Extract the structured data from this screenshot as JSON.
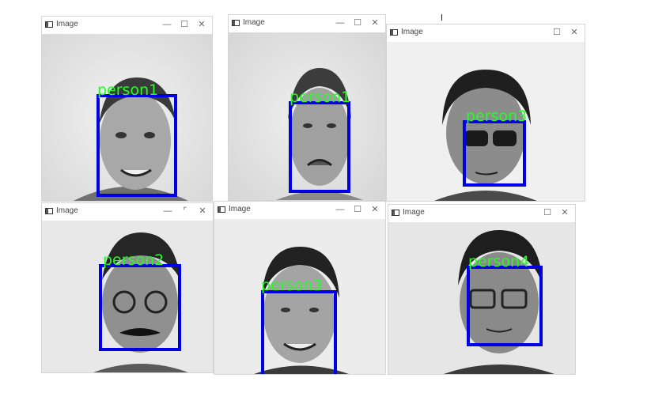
{
  "windows": [
    {
      "title": "Image",
      "label": "person1",
      "controls": {
        "min": "—",
        "max": "☐",
        "close": "✕"
      }
    },
    {
      "title": "Image",
      "label": "person1",
      "controls": {
        "min": "—",
        "max": "☐",
        "close": "✕"
      }
    },
    {
      "title": "Image",
      "label": "person3",
      "controls": {
        "min": "",
        "max": "☐",
        "close": "✕"
      }
    },
    {
      "title": "Image",
      "label": "person2",
      "controls": {
        "min": "—",
        "max": "⌜",
        "close": "✕"
      }
    },
    {
      "title": "Image",
      "label": "person3",
      "controls": {
        "min": "—",
        "max": "☐",
        "close": "✕"
      }
    },
    {
      "title": "Image",
      "label": "person4",
      "controls": {
        "min": "",
        "max": "☐",
        "close": "✕"
      }
    }
  ],
  "colors": {
    "box": "#0000e6",
    "label": "#22ff22"
  }
}
